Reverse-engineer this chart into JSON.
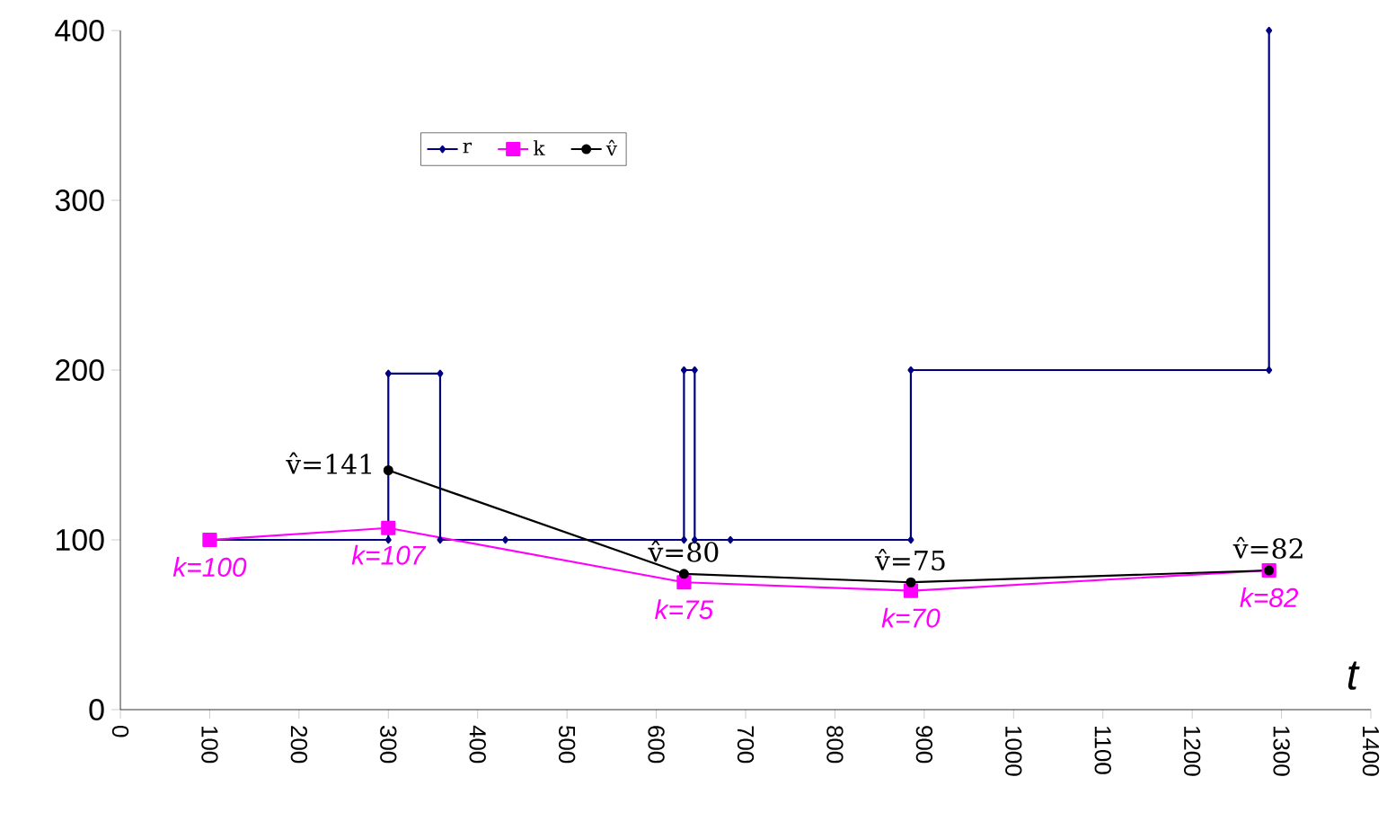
{
  "chart_data": {
    "type": "line",
    "xlabel": "t",
    "xlim": [
      0,
      1400
    ],
    "xticks": [
      0,
      100,
      200,
      300,
      400,
      500,
      600,
      700,
      800,
      900,
      1000,
      1100,
      1200,
      1300,
      1400
    ],
    "ylim": [
      0,
      400
    ],
    "yticks": [
      0,
      100,
      200,
      300,
      400
    ],
    "grid": false,
    "legend": "top left",
    "series": [
      {
        "name": "r",
        "color": "#000080",
        "marker": "diamond",
        "x": [
          100,
          300,
          300,
          358,
          358,
          431,
          631,
          631,
          643,
          643,
          683,
          885,
          885,
          1286,
          1286
        ],
        "values": [
          100,
          100,
          198,
          198,
          100,
          100,
          100,
          200,
          200,
          100,
          100,
          100,
          200,
          200,
          400
        ]
      },
      {
        "name": "k",
        "color": "#ff00ff",
        "marker": "square",
        "x": [
          100,
          300,
          631,
          885,
          1286
        ],
        "values": [
          100,
          107,
          75,
          70,
          82
        ]
      },
      {
        "name": "v̂",
        "color": "#000000",
        "marker": "circle",
        "x": [
          300,
          631,
          885,
          1286
        ],
        "values": [
          141,
          80,
          75,
          82
        ]
      }
    ],
    "annotations": [
      {
        "text": "v̂=141",
        "x": 300,
        "y": 141
      },
      {
        "text": "v̂=80",
        "x": 631,
        "y": 80
      },
      {
        "text": "v̂=75",
        "x": 885,
        "y": 75
      },
      {
        "text": "v̂=82",
        "x": 1286,
        "y": 82
      },
      {
        "text": "k=100",
        "x": 100,
        "y": 100
      },
      {
        "text": "k=107",
        "x": 300,
        "y": 107
      },
      {
        "text": "k=75",
        "x": 631,
        "y": 75
      },
      {
        "text": "k=70",
        "x": 885,
        "y": 70
      },
      {
        "text": "k=82",
        "x": 1286,
        "y": 82
      }
    ]
  }
}
